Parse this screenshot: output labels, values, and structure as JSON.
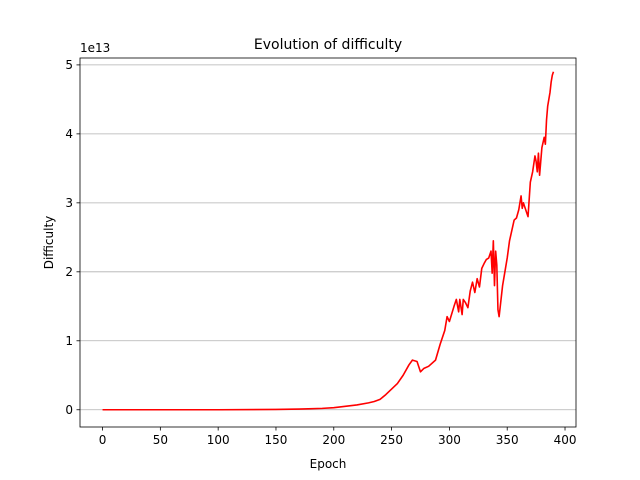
{
  "chart_data": {
    "type": "line",
    "title": "Evolution of difficulty",
    "xlabel": "Epoch",
    "ylabel": "Difficulty",
    "y_offset_label": "1e13",
    "xlim": [
      -19.5,
      409.5
    ],
    "ylim": [
      -0.25,
      5.1
    ],
    "y_unit": "1e13",
    "x_ticks": [
      0,
      50,
      100,
      150,
      200,
      250,
      300,
      350,
      400
    ],
    "x_tick_labels": [
      "0",
      "50",
      "100",
      "150",
      "200",
      "250",
      "300",
      "350",
      "400"
    ],
    "y_ticks": [
      0,
      1,
      2,
      3,
      4,
      5
    ],
    "y_tick_labels": [
      "0",
      "1",
      "2",
      "3",
      "4",
      "5"
    ],
    "grid": "y-major",
    "legend": "none",
    "series": [
      {
        "color": "#ff0000",
        "x": [
          0,
          50,
          100,
          150,
          170,
          190,
          200,
          210,
          220,
          230,
          235,
          240,
          245,
          250,
          255,
          260,
          265,
          268,
          272,
          275,
          278,
          282,
          288,
          292,
          296,
          298,
          300,
          304,
          306,
          308,
          309,
          311,
          312,
          314,
          316,
          318,
          320,
          322,
          324,
          326,
          328,
          330,
          332,
          334,
          336,
          337,
          338,
          339,
          340,
          341,
          342,
          343,
          344,
          346,
          348,
          350,
          352,
          354,
          356,
          358,
          360,
          362,
          363,
          364,
          366,
          368,
          370,
          372,
          374,
          375,
          376,
          377,
          378,
          380,
          382,
          383,
          384,
          385,
          386,
          387,
          388,
          389,
          390
        ],
        "y": [
          0.0,
          0.0,
          0.0,
          0.005,
          0.01,
          0.02,
          0.03,
          0.05,
          0.07,
          0.1,
          0.12,
          0.15,
          0.22,
          0.3,
          0.38,
          0.5,
          0.65,
          0.72,
          0.7,
          0.55,
          0.6,
          0.63,
          0.72,
          0.95,
          1.15,
          1.35,
          1.28,
          1.5,
          1.6,
          1.42,
          1.6,
          1.38,
          1.6,
          1.55,
          1.48,
          1.72,
          1.85,
          1.7,
          1.9,
          1.78,
          2.05,
          2.12,
          2.18,
          2.2,
          2.3,
          1.98,
          2.45,
          1.8,
          2.3,
          2.1,
          1.45,
          1.35,
          1.5,
          1.8,
          2.0,
          2.2,
          2.45,
          2.6,
          2.75,
          2.78,
          2.9,
          3.1,
          2.92,
          3.0,
          2.9,
          2.8,
          3.3,
          3.45,
          3.68,
          3.6,
          3.45,
          3.72,
          3.4,
          3.8,
          3.95,
          3.85,
          4.2,
          4.4,
          4.5,
          4.6,
          4.75,
          4.85,
          4.9
        ]
      }
    ]
  }
}
